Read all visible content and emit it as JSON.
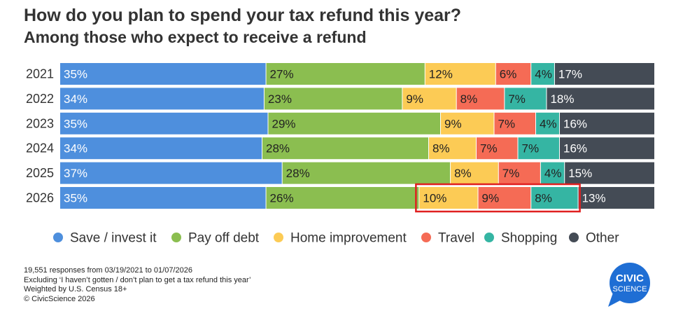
{
  "header": {
    "title": "How do you plan to spend your tax refund this year?",
    "subtitle": "Among those who expect to receive a refund"
  },
  "chart_data": {
    "type": "bar",
    "orientation": "horizontal",
    "stacked": true,
    "normalized": true,
    "categories": [
      "2021",
      "2022",
      "2023",
      "2024",
      "2025",
      "2026"
    ],
    "series": [
      {
        "name": "Save / invest it",
        "color": "#4e8fdd",
        "label_color": "#ffffff",
        "values": [
          35,
          34,
          35,
          34,
          37,
          35
        ]
      },
      {
        "name": "Pay off debt",
        "color": "#8bbe50",
        "label_color": "#222222",
        "values": [
          27,
          23,
          29,
          28,
          28,
          26
        ]
      },
      {
        "name": "Home improvement",
        "color": "#fccb55",
        "label_color": "#222222",
        "values": [
          12,
          9,
          9,
          8,
          8,
          10
        ]
      },
      {
        "name": "Travel",
        "color": "#f56b55",
        "label_color": "#222222",
        "values": [
          6,
          8,
          7,
          7,
          7,
          9
        ]
      },
      {
        "name": "Shopping",
        "color": "#35b5a3",
        "label_color": "#222222",
        "values": [
          4,
          7,
          4,
          7,
          4,
          8
        ]
      },
      {
        "name": "Other",
        "color": "#444b55",
        "label_color": "#ffffff",
        "values": [
          17,
          18,
          16,
          16,
          15,
          13
        ]
      }
    ],
    "value_suffix": "%",
    "legend_position": "bottom",
    "highlight": {
      "category": "2026",
      "series": [
        "Home improvement",
        "Travel",
        "Shopping"
      ],
      "color": "#e02020"
    }
  },
  "footer": {
    "notes": [
      "19,551 responses from 03/19/2021 to 01/07/2026",
      "Excluding ‘I haven’t gotten / don’t plan to get a tax refund this year’",
      "Weighted by U.S. Census 18+",
      "© CivicScience 2026"
    ]
  },
  "logo": {
    "line1": "CIVIC",
    "line2": "SCIENCE",
    "color": "#1f6ed4"
  }
}
